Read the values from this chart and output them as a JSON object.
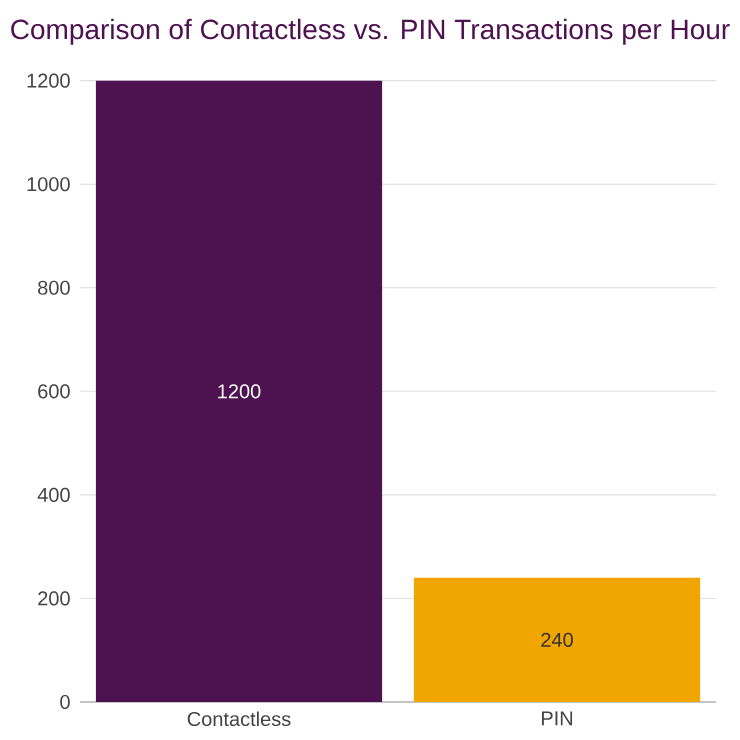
{
  "chart_data": {
    "type": "bar",
    "title": "Comparison of Contactless vs. PIN Transactions per Hour",
    "categories": [
      "Contactless",
      "PIN"
    ],
    "values": [
      1200,
      240
    ],
    "colors": [
      "#4e1251",
      "#f0a500"
    ],
    "ylim": [
      0,
      1200
    ],
    "yticks": [
      0,
      200,
      400,
      600,
      800,
      1000,
      1200
    ],
    "grid": "y",
    "data_labels": true
  }
}
